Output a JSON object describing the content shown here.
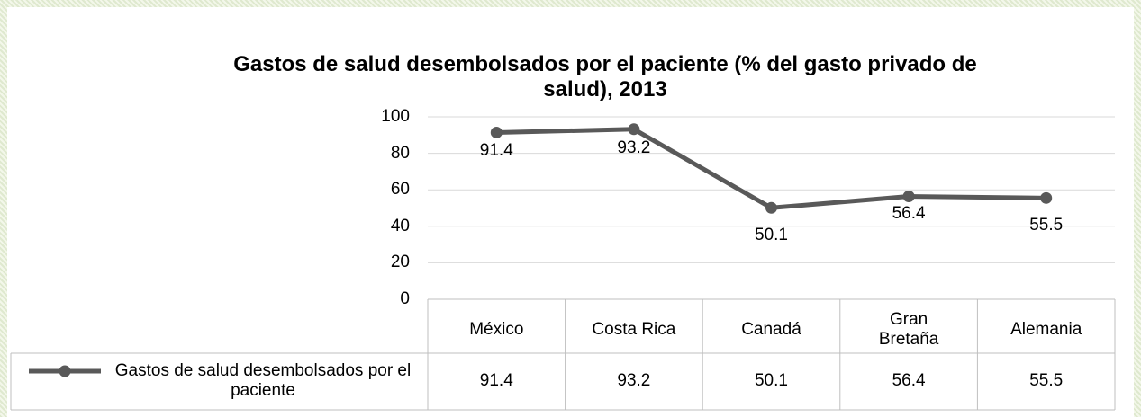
{
  "chart_data": {
    "type": "line",
    "title": "Gastos de salud desembolsados por el paciente (% del gasto privado de salud), 2013",
    "categories": [
      "México",
      "Costa Rica",
      "Canadá",
      "Gran Bretaña",
      "Alemania"
    ],
    "series": [
      {
        "name": "Gastos de salud desembolsados por el paciente",
        "color": "#595959",
        "values": [
          91.4,
          93.2,
          50.1,
          56.4,
          55.5
        ]
      }
    ],
    "ylim": [
      0,
      100
    ],
    "yticks": [
      0,
      20,
      40,
      60,
      80,
      100
    ],
    "grid": true,
    "data_table": true
  }
}
